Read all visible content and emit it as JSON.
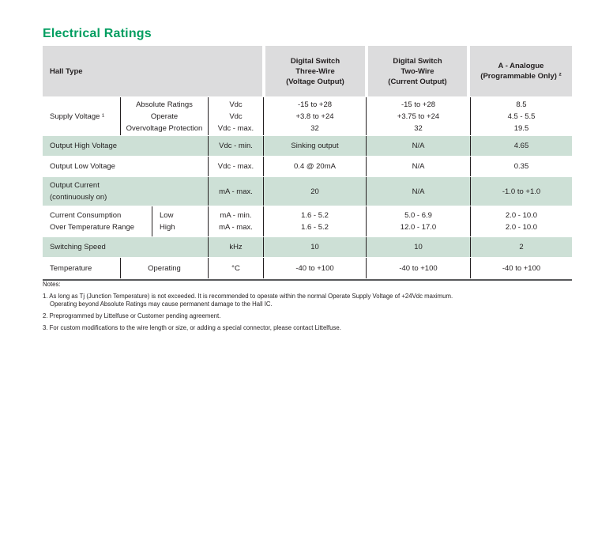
{
  "page": {
    "title": "Electrical Ratings"
  },
  "colors": {
    "accent_green": "#009e60",
    "header_gray": "#dcdcdd",
    "row_green": "#cde0d6",
    "table_bottom_rule": "#58595b"
  },
  "table": {
    "header": {
      "hall_type": "Hall Type",
      "three_wire": "Digital Switch\nThree-Wire\n(Voltage Output)",
      "two_wire": "Digital Switch\nTwo-Wire\n(Current Output)",
      "analogue": "A - Analogue\n(Programmable Only) ²"
    },
    "rows": {
      "supply_voltage": {
        "label": "Supply Voltage ¹",
        "sub": "Absolute Ratings\nOperate\nOvervoltage Protection",
        "unit": "Vdc\nVdc\nVdc - max.",
        "three_wire": "-15 to +28\n+3.8 to +24\n32",
        "two_wire": "-15 to +28\n+3.75 to +24\n32",
        "analogue": "8.5\n4.5 - 5.5\n19.5"
      },
      "output_high_voltage": {
        "label": "Output High Voltage",
        "unit": "Vdc - min.",
        "three_wire": "Sinking output",
        "two_wire": "N/A",
        "analogue": "4.65"
      },
      "output_low_voltage": {
        "label": "Output Low Voltage",
        "unit": "Vdc - max.",
        "three_wire": "0.4 @ 20mA",
        "two_wire": "N/A",
        "analogue": "0.35"
      },
      "output_current": {
        "label": "Output Current\n(continuously on)",
        "unit": "mA - max.",
        "three_wire": "20",
        "two_wire": "N/A",
        "analogue": "-1.0 to +1.0"
      },
      "current_consumption": {
        "label": "Current Consumption\nOver Temperature Range",
        "sub": "Low\nHigh",
        "unit": "mA - min.\nmA - max.",
        "three_wire": "1.6 - 5.2\n1.6 - 5.2",
        "two_wire": "5.0 - 6.9\n12.0 - 17.0",
        "analogue": "2.0 - 10.0\n2.0 - 10.0"
      },
      "switching_speed": {
        "label": "Switching Speed",
        "unit": "kHz",
        "three_wire": "10",
        "two_wire": "10",
        "analogue": "2"
      },
      "temperature": {
        "label": "Temperature",
        "sub": "Operating",
        "unit": "°C",
        "three_wire": "-40 to +100",
        "two_wire": "-40 to +100",
        "analogue": "-40 to +100"
      }
    }
  },
  "notes": {
    "heading": "Notes:",
    "items": {
      "0": "1. As long as Tj (Junction Temperature) is not exceeded. It is recommended to operate within the normal Operate Supply Voltage of +24Vdc maximum.\nOperating beyond Absolute Ratings may cause permanent damage to the Hall IC.",
      "1": "2. Preprogrammed by Littelfuse or Customer pending agreement.",
      "2": "3. For custom modifications to the wire length or size, or adding a special connector, please contact Littelfuse."
    }
  }
}
